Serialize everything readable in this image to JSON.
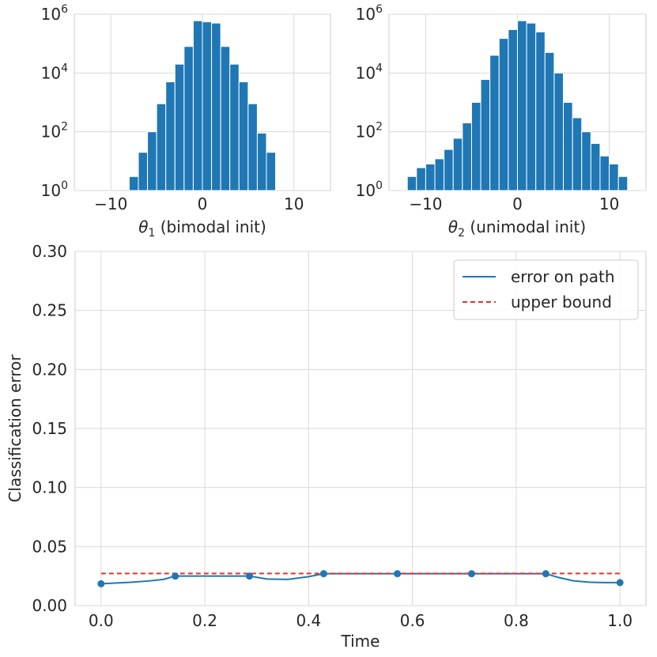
{
  "chart_data": [
    {
      "type": "bar",
      "subtype": "histogram",
      "scale": "log",
      "xlabel_symbol": "θ",
      "xlabel_sub": "1",
      "xlabel_rest": " (bimodal init)",
      "bin_width": 1,
      "bins": [
        {
          "x0": -8,
          "count": 3
        },
        {
          "x0": -7,
          "count": 20
        },
        {
          "x0": -6,
          "count": 100
        },
        {
          "x0": -5,
          "count": 900
        },
        {
          "x0": -4,
          "count": 5000
        },
        {
          "x0": -3,
          "count": 20000
        },
        {
          "x0": -2,
          "count": 80000
        },
        {
          "x0": -1,
          "count": 600000
        },
        {
          "x0": 0,
          "count": 550000
        },
        {
          "x0": 1,
          "count": 500000
        },
        {
          "x0": 2,
          "count": 80000
        },
        {
          "x0": 3,
          "count": 20000
        },
        {
          "x0": 4,
          "count": 5000
        },
        {
          "x0": 5,
          "count": 900
        },
        {
          "x0": 6,
          "count": 90
        },
        {
          "x0": 7,
          "count": 20
        }
      ],
      "xlim": [
        -14,
        14
      ],
      "ylim_exp": [
        0,
        6
      ],
      "xticks": [
        -10,
        0,
        10
      ],
      "xtick_labels": [
        "−10",
        "0",
        "10"
      ],
      "ytick_exps": [
        0,
        2,
        4,
        6
      ],
      "ytick_base": "10",
      "grid": true,
      "color": "#1f77b4"
    },
    {
      "type": "bar",
      "subtype": "histogram",
      "scale": "log",
      "xlabel_symbol": "θ",
      "xlabel_sub": "2",
      "xlabel_rest": " (unimodal init)",
      "bin_width": 1,
      "bins": [
        {
          "x0": -12,
          "count": 3
        },
        {
          "x0": -11,
          "count": 6
        },
        {
          "x0": -10,
          "count": 8
        },
        {
          "x0": -9,
          "count": 12
        },
        {
          "x0": -8,
          "count": 25
        },
        {
          "x0": -7,
          "count": 60
        },
        {
          "x0": -6,
          "count": 200
        },
        {
          "x0": -5,
          "count": 1000
        },
        {
          "x0": -4,
          "count": 6000
        },
        {
          "x0": -3,
          "count": 40000
        },
        {
          "x0": -2,
          "count": 150000
        },
        {
          "x0": -1,
          "count": 300000
        },
        {
          "x0": 0,
          "count": 600000
        },
        {
          "x0": 1,
          "count": 500000
        },
        {
          "x0": 2,
          "count": 250000
        },
        {
          "x0": 3,
          "count": 50000
        },
        {
          "x0": 4,
          "count": 10000
        },
        {
          "x0": 5,
          "count": 1000
        },
        {
          "x0": 6,
          "count": 300
        },
        {
          "x0": 7,
          "count": 100
        },
        {
          "x0": 8,
          "count": 40
        },
        {
          "x0": 9,
          "count": 15
        },
        {
          "x0": 10,
          "count": 8
        },
        {
          "x0": 11,
          "count": 3
        }
      ],
      "xlim": [
        -14,
        14
      ],
      "ylim_exp": [
        0,
        6
      ],
      "xticks": [
        -10,
        0,
        10
      ],
      "xtick_labels": [
        "−10",
        "0",
        "10"
      ],
      "ytick_exps": [
        0,
        2,
        4,
        6
      ],
      "ytick_base": "10",
      "grid": true,
      "color": "#1f77b4"
    },
    {
      "type": "line",
      "xlabel": "Time",
      "ylabel": "Classification error",
      "xlim": [
        -0.05,
        1.05
      ],
      "ylim": [
        0,
        0.3
      ],
      "xticks": [
        0.0,
        0.2,
        0.4,
        0.6,
        0.8,
        1.0
      ],
      "xtick_labels": [
        "0.0",
        "0.2",
        "0.4",
        "0.6",
        "0.8",
        "1.0"
      ],
      "yticks": [
        0.0,
        0.05,
        0.1,
        0.15,
        0.2,
        0.25,
        0.3
      ],
      "ytick_labels": [
        "0.00",
        "0.05",
        "0.10",
        "0.15",
        "0.20",
        "0.25",
        "0.30"
      ],
      "grid": true,
      "legend_position": "top-right",
      "series": [
        {
          "name": "error on path",
          "style": "solid",
          "color": "#1f77b4",
          "x": [
            0.0,
            0.03,
            0.06,
            0.09,
            0.12,
            0.143,
            0.18,
            0.22,
            0.26,
            0.286,
            0.32,
            0.36,
            0.4,
            0.429,
            0.5,
            0.571,
            0.65,
            0.714,
            0.8,
            0.857,
            0.88,
            0.91,
            0.94,
            0.97,
            1.0
          ],
          "y": [
            0.0185,
            0.0192,
            0.0198,
            0.0208,
            0.0222,
            0.025,
            0.025,
            0.025,
            0.025,
            0.025,
            0.0225,
            0.0222,
            0.0245,
            0.027,
            0.027,
            0.027,
            0.027,
            0.027,
            0.027,
            0.027,
            0.024,
            0.021,
            0.0198,
            0.0195,
            0.0195
          ]
        },
        {
          "name": "upper bound",
          "style": "dashed",
          "color": "#e8312a",
          "x": [
            0.0,
            1.0
          ],
          "y": [
            0.0272,
            0.0272
          ]
        }
      ],
      "markers": {
        "color": "#1f77b4",
        "x": [
          0.0,
          0.143,
          0.286,
          0.429,
          0.571,
          0.714,
          0.857,
          1.0
        ],
        "y": [
          0.0185,
          0.025,
          0.025,
          0.027,
          0.027,
          0.027,
          0.027,
          0.0195
        ]
      }
    }
  ]
}
